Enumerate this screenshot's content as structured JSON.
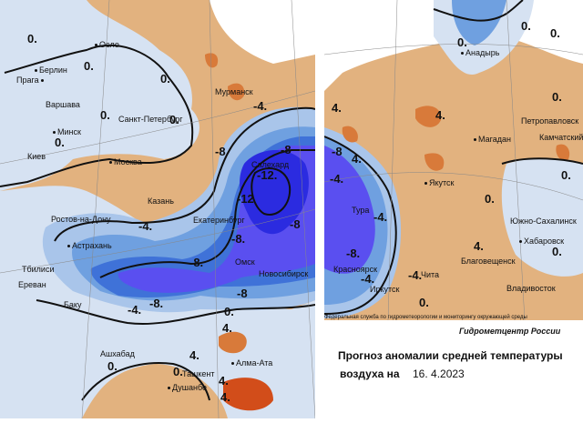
{
  "colors": {
    "strong_cold": "#2b2be0",
    "very_cold": "#5a4ff0",
    "cold": "#3f72d8",
    "cool": "#6fa0e0",
    "slightly_cool": "#a9c5ea",
    "neutral": "#d6e2f2",
    "warm": "#e2b27f",
    "hot": "#d87a3a",
    "very_hot": "#d24d1a"
  },
  "cities_left": [
    {
      "name": "Осло"
    },
    {
      "name": "Берлин"
    },
    {
      "name": "Прага"
    },
    {
      "name": "Варшава"
    },
    {
      "name": "Минск"
    },
    {
      "name": "Санкт-Петербург"
    },
    {
      "name": "Мурманск"
    },
    {
      "name": "Киев"
    },
    {
      "name": "Москва"
    },
    {
      "name": "Казань"
    },
    {
      "name": "Ростов-на-Дону"
    },
    {
      "name": "Екатеринбург"
    },
    {
      "name": "Астрахань"
    },
    {
      "name": "Тбилиси"
    },
    {
      "name": "Ереван"
    },
    {
      "name": "Баку"
    },
    {
      "name": "Омск"
    },
    {
      "name": "Новосибирск"
    },
    {
      "name": "Ашхабад"
    },
    {
      "name": "Ташкент"
    },
    {
      "name": "Алма-Ата"
    },
    {
      "name": "Душанбе"
    },
    {
      "name": "Салехард"
    }
  ],
  "cities_right": [
    {
      "name": "Анадырь"
    },
    {
      "name": "Петропавловск"
    },
    {
      "name": "Магадан"
    },
    {
      "name": "Камчатский"
    },
    {
      "name": "Якутск"
    },
    {
      "name": "Тура"
    },
    {
      "name": "Южно-Сахалинск"
    },
    {
      "name": "Хабаровск"
    },
    {
      "name": "Благовещенск"
    },
    {
      "name": "Красноярск"
    },
    {
      "name": "Чита"
    },
    {
      "name": "Иркутск"
    },
    {
      "name": "Владивосток"
    }
  ],
  "isolines_left": [
    "0.",
    "0.",
    "0.",
    "0.",
    "0.",
    "0.",
    "-4.",
    "-4.",
    "-8",
    "-8",
    "-12.",
    "-12",
    "-8",
    "-8.",
    "-8.",
    "-8",
    "-4.",
    "4.",
    "0.",
    "0.",
    "4.",
    "4.",
    "0.",
    "4.",
    "-8."
  ],
  "isolines_right": [
    "0.",
    "0.",
    "4.",
    "4.",
    "0.",
    "-8",
    "-8.",
    "-4.",
    "-4.",
    "-4.",
    "-4.",
    "0.",
    "4.",
    "0.",
    "0.",
    "4.",
    "0.",
    "0."
  ],
  "credit": "Федеральная служба по гидрометеорологии и мониторингу окружающей среды",
  "center_name": "Гидрометцентр России",
  "caption": {
    "line1": "Прогноз аномалии средней температуры",
    "line2_prefix": "воздуха на",
    "date": "16. 4.2023"
  }
}
